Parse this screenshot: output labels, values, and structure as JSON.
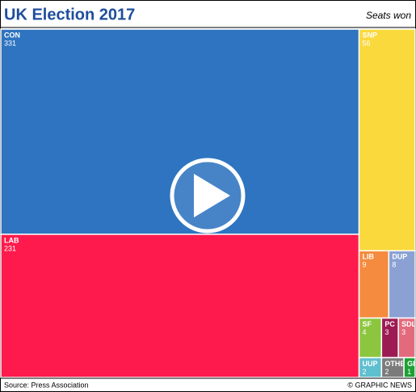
{
  "chart_data": {
    "type": "treemap",
    "title": "UK Election 2017",
    "subtitle": "Seats won",
    "categories": [
      "CON",
      "LAB",
      "SNP",
      "LIB",
      "DUP",
      "SF",
      "PC",
      "SDL",
      "UUP",
      "OTHE",
      "GI"
    ],
    "values": [
      331,
      231,
      56,
      9,
      8,
      4,
      3,
      3,
      2,
      2,
      1
    ],
    "colors": [
      "#2e74c0",
      "#fe1a4c",
      "#fad93c",
      "#f58b3e",
      "#8ba1d4",
      "#8cc63f",
      "#9c1b53",
      "#e36a7c",
      "#5ebfcf",
      "#7b7b7b",
      "#1ca033"
    ],
    "source": "Source: Press Association",
    "credit": "© GRAPHIC NEWS"
  }
}
